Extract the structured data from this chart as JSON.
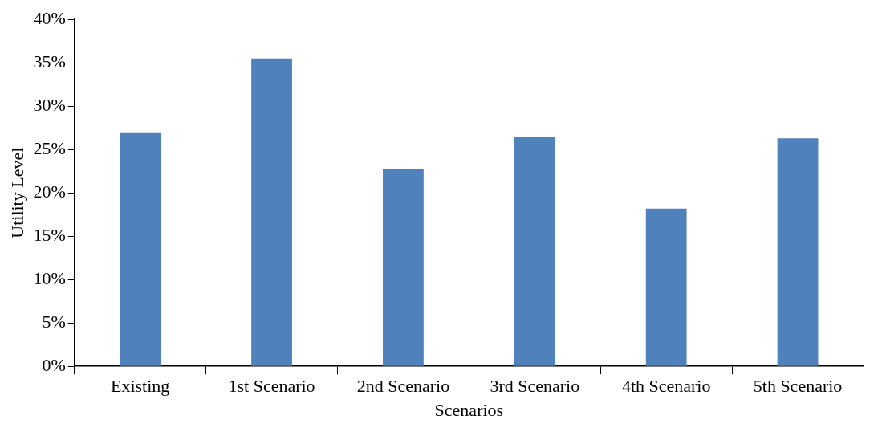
{
  "chart_data": {
    "type": "bar",
    "xlabel": "Scenarios",
    "ylabel": "Utility Level",
    "categories": [
      "Existing",
      "1st Scenario",
      "2nd Scenario",
      "3rd Scenario",
      "4th Scenario",
      "5th Scenario"
    ],
    "values": [
      26.9,
      35.5,
      22.7,
      26.4,
      18.2,
      26.3
    ],
    "color": "#4f81bd",
    "ylim": [
      0,
      40
    ],
    "yticks": [
      {
        "value": 0,
        "label": "0%"
      },
      {
        "value": 5,
        "label": "5%"
      },
      {
        "value": 10,
        "label": "10%"
      },
      {
        "value": 15,
        "label": "15%"
      },
      {
        "value": 20,
        "label": "20%"
      },
      {
        "value": 25,
        "label": "25%"
      },
      {
        "value": 30,
        "label": "30%"
      },
      {
        "value": 35,
        "label": "35%"
      },
      {
        "value": 40,
        "label": "40%"
      }
    ],
    "grid": false,
    "legend": false
  }
}
